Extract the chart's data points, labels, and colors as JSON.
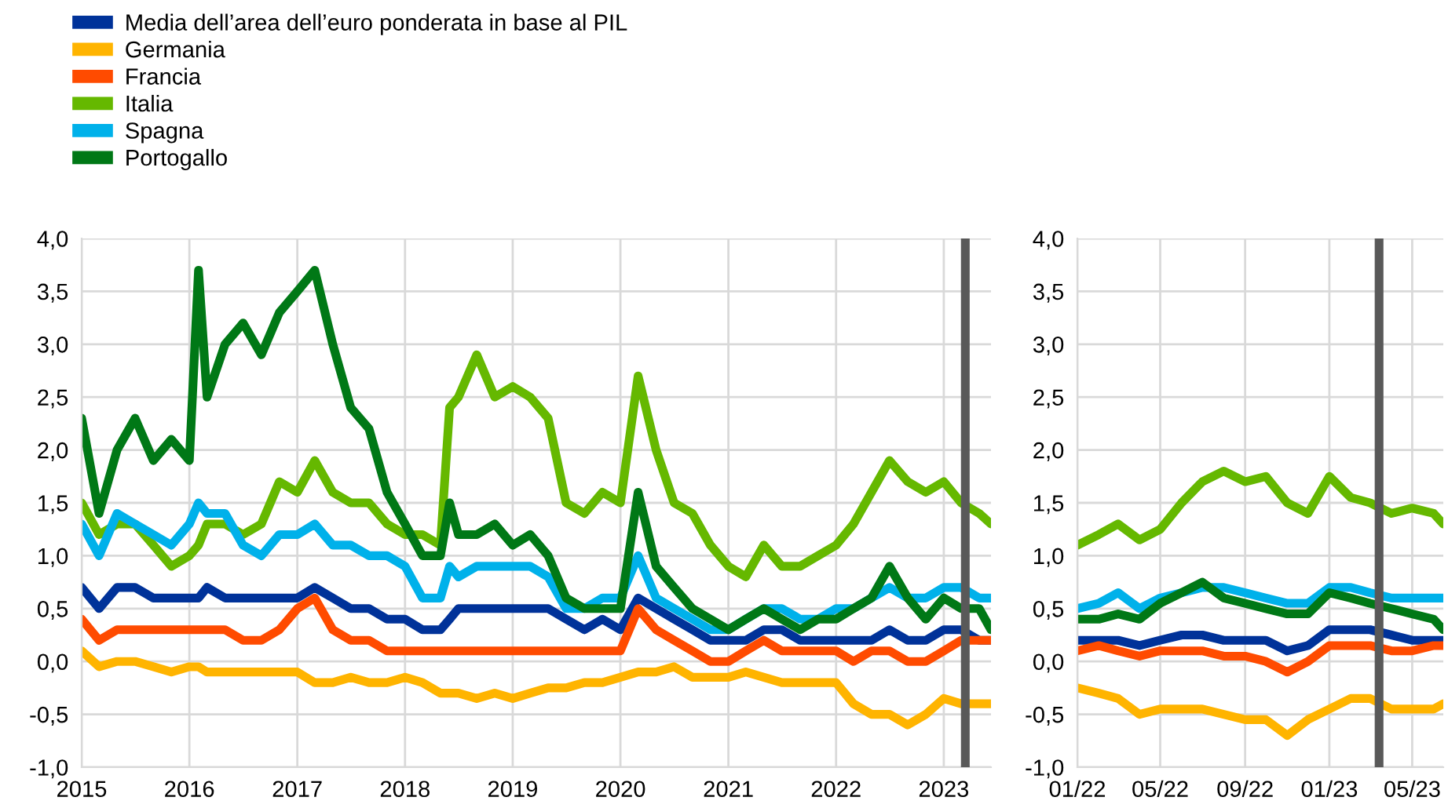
{
  "chart_data": [
    {
      "type": "line",
      "legend": "top left",
      "grid": true,
      "x": [
        "2015-01",
        "2015-03",
        "2015-05",
        "2015-07",
        "2015-09",
        "2015-11",
        "2016-01",
        "2016-02",
        "2016-03",
        "2016-05",
        "2016-07",
        "2016-09",
        "2016-11",
        "2017-01",
        "2017-03",
        "2017-05",
        "2017-07",
        "2017-09",
        "2017-11",
        "2018-01",
        "2018-03",
        "2018-05",
        "2018-06",
        "2018-07",
        "2018-09",
        "2018-11",
        "2019-01",
        "2019-03",
        "2019-05",
        "2019-07",
        "2019-09",
        "2019-11",
        "2020-01",
        "2020-03",
        "2020-05",
        "2020-07",
        "2020-09",
        "2020-11",
        "2021-01",
        "2021-03",
        "2021-05",
        "2021-07",
        "2021-09",
        "2021-11",
        "2022-01",
        "2022-03",
        "2022-05",
        "2022-07",
        "2022-09",
        "2022-11",
        "2023-01",
        "2023-03",
        "2023-05",
        "2023-06-10"
      ],
      "series": [
        {
          "name": "Media dell’area dell’euro ponderata in base al PIL",
          "color": "#003299",
          "values": [
            0.7,
            0.5,
            0.7,
            0.7,
            0.6,
            0.6,
            0.6,
            0.6,
            0.7,
            0.6,
            0.6,
            0.6,
            0.6,
            0.6,
            0.7,
            0.6,
            0.5,
            0.5,
            0.4,
            0.4,
            0.3,
            0.3,
            0.4,
            0.5,
            0.5,
            0.5,
            0.5,
            0.5,
            0.5,
            0.4,
            0.3,
            0.4,
            0.3,
            0.6,
            0.5,
            0.4,
            0.3,
            0.2,
            0.2,
            0.2,
            0.3,
            0.3,
            0.2,
            0.2,
            0.2,
            0.2,
            0.2,
            0.3,
            0.2,
            0.2,
            0.3,
            0.3,
            0.2,
            0.2
          ]
        },
        {
          "name": "Germania",
          "color": "#ffb400",
          "values": [
            0.1,
            -0.05,
            0.0,
            0.0,
            -0.05,
            -0.1,
            -0.05,
            -0.05,
            -0.1,
            -0.1,
            -0.1,
            -0.1,
            -0.1,
            -0.1,
            -0.2,
            -0.2,
            -0.15,
            -0.2,
            -0.2,
            -0.15,
            -0.2,
            -0.3,
            -0.3,
            -0.3,
            -0.35,
            -0.3,
            -0.35,
            -0.3,
            -0.25,
            -0.25,
            -0.2,
            -0.2,
            -0.15,
            -0.1,
            -0.1,
            -0.05,
            -0.15,
            -0.15,
            -0.15,
            -0.1,
            -0.15,
            -0.2,
            -0.2,
            -0.2,
            -0.2,
            -0.4,
            -0.5,
            -0.5,
            -0.6,
            -0.5,
            -0.35,
            -0.4,
            -0.4,
            -0.4
          ]
        },
        {
          "name": "Francia",
          "color": "#ff4b00",
          "values": [
            0.4,
            0.2,
            0.3,
            0.3,
            0.3,
            0.3,
            0.3,
            0.3,
            0.3,
            0.3,
            0.2,
            0.2,
            0.3,
            0.5,
            0.6,
            0.3,
            0.2,
            0.2,
            0.1,
            0.1,
            0.1,
            0.1,
            0.1,
            0.1,
            0.1,
            0.1,
            0.1,
            0.1,
            0.1,
            0.1,
            0.1,
            0.1,
            0.1,
            0.5,
            0.3,
            0.2,
            0.1,
            0.0,
            0.0,
            0.1,
            0.2,
            0.1,
            0.1,
            0.1,
            0.1,
            0.0,
            0.1,
            0.1,
            0.0,
            0.0,
            0.1,
            0.2,
            0.2,
            0.2
          ]
        },
        {
          "name": "Italia",
          "color": "#65b800",
          "values": [
            1.5,
            1.2,
            1.3,
            1.3,
            1.1,
            0.9,
            1.0,
            1.1,
            1.3,
            1.3,
            1.2,
            1.3,
            1.7,
            1.6,
            1.9,
            1.6,
            1.5,
            1.5,
            1.3,
            1.2,
            1.2,
            1.1,
            2.4,
            2.5,
            2.9,
            2.5,
            2.6,
            2.5,
            2.3,
            1.5,
            1.4,
            1.6,
            1.5,
            2.7,
            2.0,
            1.5,
            1.4,
            1.1,
            0.9,
            0.8,
            1.1,
            0.9,
            0.9,
            1.0,
            1.1,
            1.3,
            1.6,
            1.9,
            1.7,
            1.6,
            1.7,
            1.5,
            1.4,
            1.3
          ]
        },
        {
          "name": "Spagna",
          "color": "#00b1ea",
          "values": [
            1.3,
            1.0,
            1.4,
            1.3,
            1.2,
            1.1,
            1.3,
            1.5,
            1.4,
            1.4,
            1.1,
            1.0,
            1.2,
            1.2,
            1.3,
            1.1,
            1.1,
            1.0,
            1.0,
            0.9,
            0.6,
            0.6,
            0.9,
            0.8,
            0.9,
            0.9,
            0.9,
            0.9,
            0.8,
            0.5,
            0.5,
            0.6,
            0.6,
            1.0,
            0.6,
            0.5,
            0.4,
            0.3,
            0.3,
            0.4,
            0.5,
            0.5,
            0.4,
            0.4,
            0.5,
            0.5,
            0.6,
            0.7,
            0.6,
            0.6,
            0.7,
            0.7,
            0.6,
            0.6
          ]
        },
        {
          "name": "Portogallo",
          "color": "#007816",
          "values": [
            2.3,
            1.4,
            2.0,
            2.3,
            1.9,
            2.1,
            1.9,
            3.7,
            2.5,
            3.0,
            3.2,
            2.9,
            3.3,
            3.5,
            3.7,
            3.0,
            2.4,
            2.2,
            1.6,
            1.3,
            1.0,
            1.0,
            1.5,
            1.2,
            1.2,
            1.3,
            1.1,
            1.2,
            1.0,
            0.6,
            0.5,
            0.5,
            0.5,
            1.6,
            0.9,
            0.7,
            0.5,
            0.4,
            0.3,
            0.4,
            0.5,
            0.4,
            0.3,
            0.4,
            0.4,
            0.5,
            0.6,
            0.9,
            0.6,
            0.4,
            0.6,
            0.5,
            0.5,
            0.3
          ]
        }
      ],
      "xlim": [
        "2015-01-01",
        "2023-06-10"
      ],
      "xticks": [
        "2015",
        "2016",
        "2017",
        "2018",
        "2019",
        "2020",
        "2021",
        "2022",
        "2023"
      ],
      "ylim": [
        -1.0,
        4.0
      ],
      "yticks": [
        {
          "value": -1.0,
          "label": "-1,0"
        },
        {
          "value": -0.5,
          "label": "-0,5"
        },
        {
          "value": 0.0,
          "label": "0,0"
        },
        {
          "value": 0.5,
          "label": "0,5"
        },
        {
          "value": 1.0,
          "label": "1,0"
        },
        {
          "value": 1.5,
          "label": "1,5"
        },
        {
          "value": 2.0,
          "label": "2,0"
        },
        {
          "value": 2.5,
          "label": "2,5"
        },
        {
          "value": 3.0,
          "label": "3,0"
        },
        {
          "value": 3.5,
          "label": "3,5"
        },
        {
          "value": 4.0,
          "label": "4,0"
        }
      ],
      "ref_lines": [
        {
          "axis": "x",
          "value": "2023-03-15",
          "color": "#595959"
        }
      ]
    },
    {
      "type": "line",
      "grid": true,
      "x": [
        "2022-01",
        "2022-02",
        "2022-03",
        "2022-04",
        "2022-05",
        "2022-06",
        "2022-07",
        "2022-08",
        "2022-09",
        "2022-10",
        "2022-11",
        "2022-12",
        "2023-01",
        "2023-02",
        "2023-03",
        "2023-04",
        "2023-05",
        "2023-06",
        "2023-06-15"
      ],
      "series": [
        {
          "color": "#003299",
          "values": [
            0.2,
            0.2,
            0.2,
            0.15,
            0.2,
            0.25,
            0.25,
            0.2,
            0.2,
            0.2,
            0.1,
            0.15,
            0.3,
            0.3,
            0.3,
            0.25,
            0.2,
            0.2,
            0.2
          ]
        },
        {
          "color": "#ffb400",
          "values": [
            -0.25,
            -0.3,
            -0.35,
            -0.5,
            -0.45,
            -0.45,
            -0.45,
            -0.5,
            -0.55,
            -0.55,
            -0.7,
            -0.55,
            -0.45,
            -0.35,
            -0.35,
            -0.45,
            -0.45,
            -0.45,
            -0.4
          ]
        },
        {
          "color": "#ff4b00",
          "values": [
            0.1,
            0.15,
            0.1,
            0.05,
            0.1,
            0.1,
            0.1,
            0.05,
            0.05,
            0.0,
            -0.1,
            0.0,
            0.15,
            0.15,
            0.15,
            0.1,
            0.1,
            0.15,
            0.15
          ]
        },
        {
          "color": "#65b800",
          "values": [
            1.1,
            1.2,
            1.3,
            1.15,
            1.25,
            1.5,
            1.7,
            1.8,
            1.7,
            1.75,
            1.5,
            1.4,
            1.75,
            1.55,
            1.5,
            1.4,
            1.45,
            1.4,
            1.3
          ]
        },
        {
          "color": "#00b1ea",
          "values": [
            0.5,
            0.55,
            0.65,
            0.5,
            0.6,
            0.65,
            0.7,
            0.7,
            0.65,
            0.6,
            0.55,
            0.55,
            0.7,
            0.7,
            0.65,
            0.6,
            0.6,
            0.6,
            0.6
          ]
        },
        {
          "color": "#007816",
          "values": [
            0.4,
            0.4,
            0.45,
            0.4,
            0.55,
            0.65,
            0.75,
            0.6,
            0.55,
            0.5,
            0.45,
            0.45,
            0.65,
            0.6,
            0.55,
            0.5,
            0.45,
            0.4,
            0.3
          ]
        }
      ],
      "xlim": [
        "2022-01-01",
        "2023-06-15"
      ],
      "xticks": [
        {
          "value": "2022-01",
          "label": "01/22"
        },
        {
          "value": "2022-05",
          "label": "05/22"
        },
        {
          "value": "2022-09",
          "label": "09/22"
        },
        {
          "value": "2023-01",
          "label": "01/23"
        },
        {
          "value": "2023-05",
          "label": "05/23"
        }
      ],
      "ylim": [
        -1.0,
        4.0
      ],
      "yticks": [
        {
          "value": -1.0,
          "label": "-1,0"
        },
        {
          "value": -0.5,
          "label": "-0,5"
        },
        {
          "value": 0.0,
          "label": "0,0"
        },
        {
          "value": 0.5,
          "label": "0,5"
        },
        {
          "value": 1.0,
          "label": "1,0"
        },
        {
          "value": 1.5,
          "label": "1,5"
        },
        {
          "value": 2.0,
          "label": "2,0"
        },
        {
          "value": 2.5,
          "label": "2,5"
        },
        {
          "value": 3.0,
          "label": "3,0"
        },
        {
          "value": 3.5,
          "label": "3,5"
        },
        {
          "value": 4.0,
          "label": "4,0"
        }
      ],
      "ref_lines": [
        {
          "axis": "x",
          "value": "2023-03-14",
          "color": "#595959"
        }
      ]
    }
  ]
}
